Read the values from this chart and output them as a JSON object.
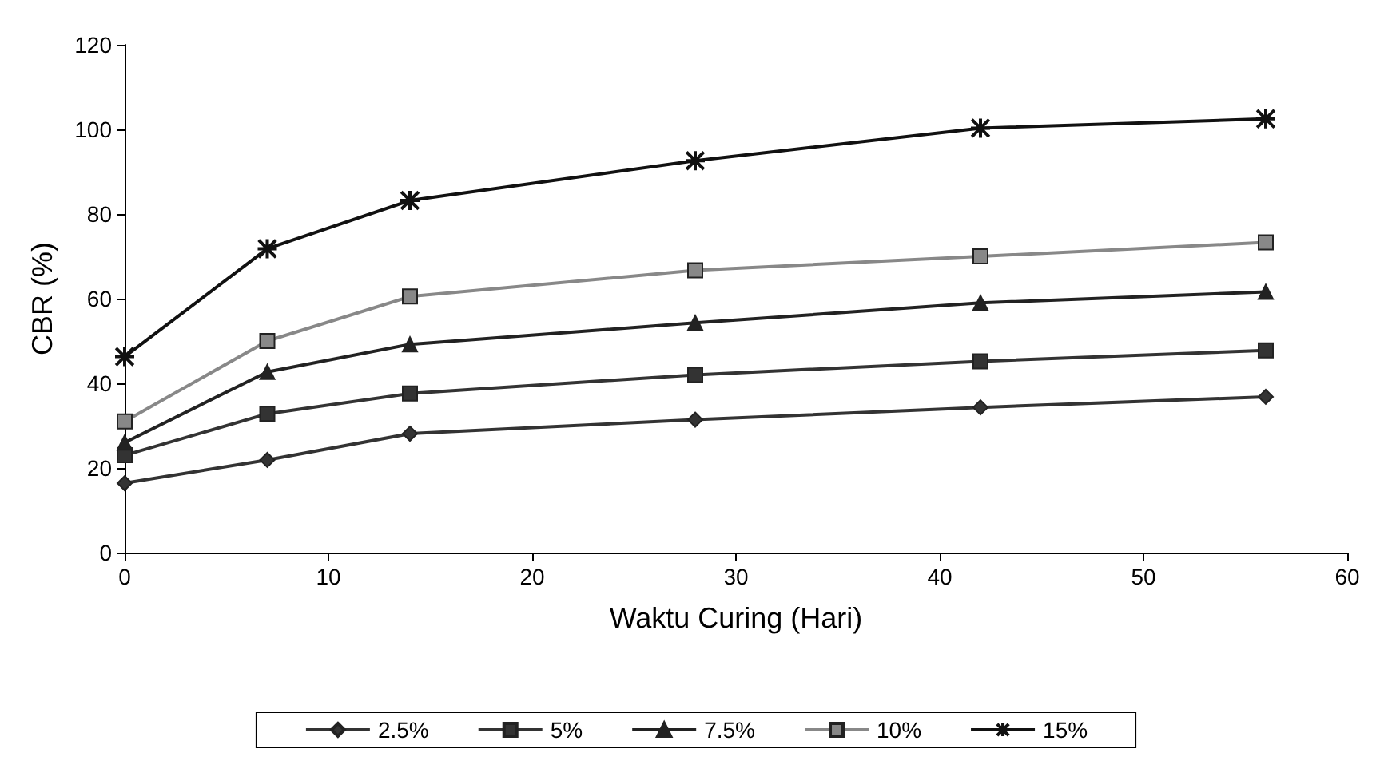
{
  "chart_data": {
    "type": "line",
    "xlabel": "Waktu Curing (Hari)",
    "ylabel": "CBR (%)",
    "x": [
      0,
      7,
      14,
      28,
      42,
      56
    ],
    "series": [
      {
        "name": "2.5%",
        "color": "#333333",
        "marker": "diamond",
        "values": [
          16.4,
          21.9,
          28.1,
          31.4,
          34.3,
          36.8
        ]
      },
      {
        "name": "5%",
        "color": "#333333",
        "marker": "square",
        "values": [
          23,
          32.8,
          37.6,
          42,
          45.2,
          47.8
        ]
      },
      {
        "name": "7.5%",
        "color": "#222222",
        "marker": "triangle",
        "values": [
          26,
          42.7,
          49.2,
          54.3,
          59,
          61.6
        ]
      },
      {
        "name": "10%",
        "color": "#888888",
        "marker": "square",
        "values": [
          31,
          50,
          60.5,
          66.7,
          70,
          73.3
        ]
      },
      {
        "name": "15%",
        "color": "#111111",
        "marker": "cross",
        "values": [
          46.3,
          71.8,
          83.2,
          92.6,
          100.3,
          102.5
        ]
      }
    ],
    "xlim": [
      0,
      60
    ],
    "xticks": [
      0,
      10,
      20,
      30,
      40,
      50,
      60
    ],
    "ylim": [
      0,
      120
    ],
    "yticks": [
      0,
      20,
      40,
      60,
      80,
      100,
      120
    ],
    "grid": false,
    "legend": "bottom",
    "line_style": "solid"
  }
}
